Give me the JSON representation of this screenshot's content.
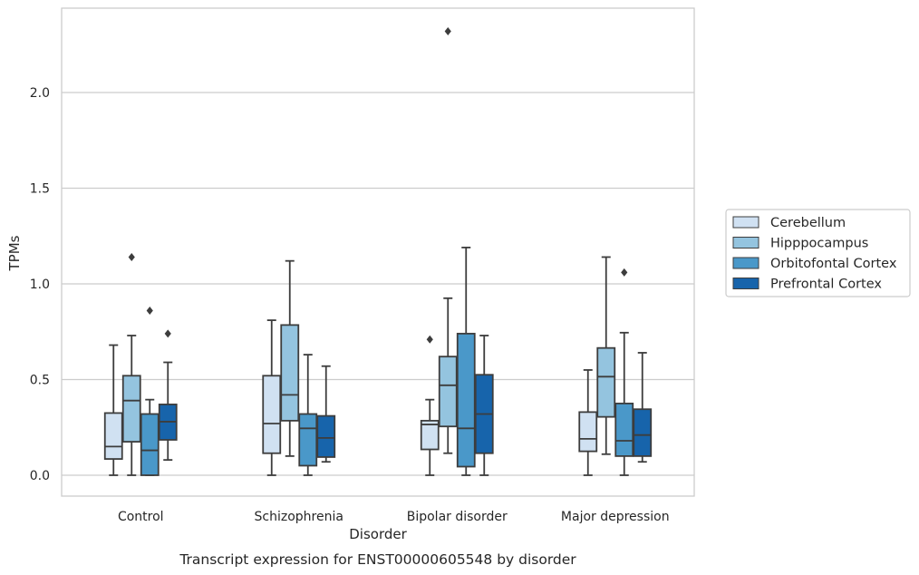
{
  "chart_data": {
    "type": "boxplot",
    "caption": "Transcript expression for ENST00000605548 by disorder",
    "xlabel": "Disorder",
    "ylabel": "TPMs",
    "ylim": [
      -0.11,
      2.44
    ],
    "yticks": [
      0.0,
      0.5,
      1.0,
      1.5,
      2.0
    ],
    "ytick_labels": [
      "0.0",
      "0.5",
      "1.0",
      "1.5",
      "2.0"
    ],
    "grid": "horizontal",
    "legend_position": "right",
    "categories": [
      "Control",
      "Schizophrenia",
      "Bipolar disorder",
      "Major depression"
    ],
    "series": [
      {
        "name": "Cerebellum",
        "color": "#d0e1f2",
        "boxes": [
          {
            "whislo": 0.0,
            "q1": 0.085,
            "med": 0.15,
            "q3": 0.325,
            "whishi": 0.68,
            "fliers": []
          },
          {
            "whislo": 0.0,
            "q1": 0.115,
            "med": 0.27,
            "q3": 0.52,
            "whishi": 0.81,
            "fliers": []
          },
          {
            "whislo": 0.0,
            "q1": 0.135,
            "med": 0.265,
            "q3": 0.285,
            "whishi": 0.395,
            "fliers": [
              0.71
            ]
          },
          {
            "whislo": 0.0,
            "q1": 0.125,
            "med": 0.19,
            "q3": 0.33,
            "whishi": 0.55,
            "fliers": []
          }
        ]
      },
      {
        "name": "Hipppocampus",
        "color": "#94c4df",
        "boxes": [
          {
            "whislo": 0.0,
            "q1": 0.175,
            "med": 0.39,
            "q3": 0.52,
            "whishi": 0.73,
            "fliers": [
              1.14
            ]
          },
          {
            "whislo": 0.1,
            "q1": 0.285,
            "med": 0.42,
            "q3": 0.785,
            "whishi": 1.12,
            "fliers": []
          },
          {
            "whislo": 0.115,
            "q1": 0.255,
            "med": 0.47,
            "q3": 0.62,
            "whishi": 0.925,
            "fliers": [
              2.32
            ]
          },
          {
            "whislo": 0.11,
            "q1": 0.305,
            "med": 0.515,
            "q3": 0.665,
            "whishi": 1.14,
            "fliers": []
          }
        ]
      },
      {
        "name": "Orbitofontal Cortex",
        "color": "#4a98c9",
        "boxes": [
          {
            "whislo": 0.0,
            "q1": 0.0,
            "med": 0.13,
            "q3": 0.32,
            "whishi": 0.395,
            "fliers": [
              0.86
            ]
          },
          {
            "whislo": 0.0,
            "q1": 0.05,
            "med": 0.245,
            "q3": 0.32,
            "whishi": 0.63,
            "fliers": []
          },
          {
            "whislo": 0.0,
            "q1": 0.045,
            "med": 0.245,
            "q3": 0.74,
            "whishi": 1.19,
            "fliers": []
          },
          {
            "whislo": 0.0,
            "q1": 0.1,
            "med": 0.18,
            "q3": 0.375,
            "whishi": 0.745,
            "fliers": [
              1.06
            ]
          }
        ]
      },
      {
        "name": "Prefrontal Cortex",
        "color": "#1764ab",
        "boxes": [
          {
            "whislo": 0.08,
            "q1": 0.185,
            "med": 0.28,
            "q3": 0.37,
            "whishi": 0.59,
            "fliers": [
              0.74
            ]
          },
          {
            "whislo": 0.07,
            "q1": 0.095,
            "med": 0.195,
            "q3": 0.31,
            "whishi": 0.57,
            "fliers": []
          },
          {
            "whislo": 0.0,
            "q1": 0.115,
            "med": 0.32,
            "q3": 0.525,
            "whishi": 0.73,
            "fliers": []
          },
          {
            "whislo": 0.07,
            "q1": 0.1,
            "med": 0.21,
            "q3": 0.345,
            "whishi": 0.64,
            "fliers": []
          }
        ]
      }
    ],
    "colors": {
      "grid": "#cccccc",
      "frame": "#cccccc",
      "line": "#3d3d3d",
      "text": "#262626"
    }
  }
}
